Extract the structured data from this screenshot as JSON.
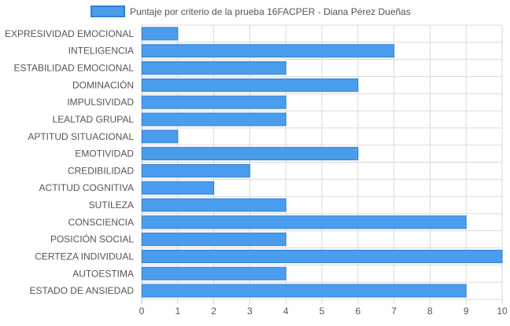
{
  "chart_data": {
    "type": "bar",
    "orientation": "horizontal",
    "legend_position": "top",
    "grid": true,
    "xlim": [
      0,
      10
    ],
    "x_ticks": [
      "0",
      "1",
      "2",
      "3",
      "4",
      "5",
      "6",
      "7",
      "8",
      "9",
      "10"
    ],
    "categories": [
      "EXPRESIVIDAD EMOCIONAL",
      "INTELIGENCIA",
      "ESTABILIDAD EMOCIONAL",
      "DOMINACIÓN",
      "IMPULSIVIDAD",
      "LEALTAD GRUPAL",
      "APTITUD SITUACIONAL",
      "EMOTIVIDAD",
      "CREDIBILIDAD",
      "ACTITUD COGNITIVA",
      "SUTILEZA",
      "CONSCIENCIA",
      "POSICIÓN SOCIAL",
      "CERTEZA INDIVIDUAL",
      "AUTOESTIMA",
      "ESTADO DE ANSIEDAD"
    ],
    "series": [
      {
        "name": "Puntaje por criterio de la prueba 16FACPER - Diana Pérez Dueñas",
        "color": "#4a9ded",
        "border_color": "#2f7fd6",
        "values": [
          1,
          7,
          4,
          6,
          4,
          4,
          1,
          6,
          3,
          2,
          4,
          9,
          4,
          10,
          4,
          9
        ]
      }
    ],
    "grid_color": "#d9d9d9",
    "text_color": "#555555"
  }
}
